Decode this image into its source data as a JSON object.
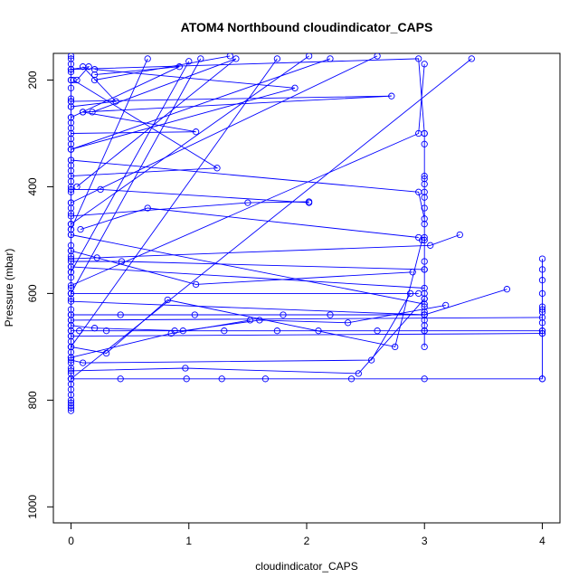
{
  "chart_data": {
    "type": "line",
    "title": "ATOM4 Northbound cloudindicator_CAPS",
    "xlabel": "cloudindicator_CAPS",
    "ylabel": "Pressure (mbar)",
    "xlim": [
      -0.15,
      4.15
    ],
    "ylim": [
      1030,
      150
    ],
    "x_ticks": [
      0,
      1,
      2,
      3,
      4
    ],
    "y_ticks": [
      200,
      400,
      600,
      800,
      1000
    ],
    "series_color": "#0000ff",
    "grid": false,
    "legend": "none",
    "series": [
      {
        "x": [
          0,
          0,
          0,
          0,
          0,
          0,
          0,
          0,
          0,
          0,
          0,
          0,
          0,
          0,
          0,
          0,
          0,
          0,
          0,
          0,
          0,
          0,
          0,
          0,
          0,
          0,
          0,
          0,
          0,
          0,
          0,
          0,
          0,
          0,
          0,
          0,
          0,
          0,
          0,
          0,
          0,
          0,
          0,
          0,
          0,
          0,
          0,
          0,
          0,
          0,
          0,
          0,
          0,
          0,
          0,
          0,
          0,
          0,
          0,
          0
        ],
        "y": [
          155,
          170,
          185,
          200,
          215,
          235,
          250,
          270,
          290,
          310,
          330,
          350,
          370,
          390,
          410,
          430,
          450,
          470,
          490,
          510,
          530,
          550,
          570,
          590,
          610,
          630,
          640,
          650,
          660,
          670,
          680,
          690,
          700,
          710,
          720,
          730,
          740,
          750,
          760,
          770,
          780,
          790,
          800,
          805,
          810,
          815,
          820,
          640,
          600,
          560,
          520,
          480,
          440,
          400,
          360,
          320,
          280,
          240,
          200,
          160
        ]
      },
      {
        "x": [
          3,
          3,
          3,
          3,
          3,
          3,
          3,
          3,
          3,
          3,
          3,
          3,
          3,
          3,
          3,
          3,
          3,
          3,
          3,
          3,
          3,
          3
        ],
        "y": [
          300,
          320,
          380,
          395,
          410,
          420,
          440,
          470,
          495,
          540,
          555,
          600,
          610,
          625,
          635,
          640,
          650,
          660,
          670,
          700,
          500,
          385
        ]
      },
      {
        "x": [
          4,
          4,
          4,
          4,
          4,
          4,
          4,
          4,
          4,
          4,
          4
        ],
        "y": [
          535,
          555,
          575,
          600,
          625,
          635,
          655,
          670,
          675,
          760,
          630
        ]
      },
      {
        "x": [
          0,
          0.42,
          0.98,
          1.28,
          1.65,
          2.38,
          3.0,
          4.0
        ],
        "y": [
          760,
          760,
          760,
          760,
          760,
          760,
          760,
          760
        ]
      },
      {
        "x": [
          0,
          0.07,
          0.3,
          0.88,
          1.3,
          1.75,
          2.1,
          2.6,
          3.0,
          4.0
        ],
        "y": [
          670,
          670,
          670,
          670,
          670,
          670,
          670,
          670,
          670,
          670
        ]
      },
      {
        "x": [
          0,
          0.42,
          1.05,
          1.8,
          2.2,
          3.0,
          3.7
        ],
        "y": [
          640,
          640,
          640,
          640,
          640,
          640,
          592
        ]
      },
      {
        "x": [
          0,
          0.2,
          0.95,
          1.6,
          2.35,
          3.18
        ],
        "y": [
          660,
          665,
          670,
          650,
          655,
          622
        ]
      },
      {
        "x": [
          0,
          0.3,
          0.82,
          2.75,
          2.98
        ],
        "y": [
          700,
          712,
          612,
          700,
          500
        ]
      },
      {
        "x": [
          0,
          0.85,
          1.52
        ],
        "y": [
          720,
          675,
          650
        ]
      },
      {
        "x": [
          0,
          0.1,
          2.55,
          2.88
        ],
        "y": [
          725,
          730,
          725,
          600
        ]
      },
      {
        "x": [
          0,
          0.97,
          2.44,
          3.0
        ],
        "y": [
          745,
          740,
          750,
          610
        ]
      },
      {
        "x": [
          0,
          0.25,
          2.02
        ],
        "y": [
          405,
          405,
          430
        ]
      },
      {
        "x": [
          0,
          0.43,
          3.0
        ],
        "y": [
          540,
          540,
          555
        ]
      },
      {
        "x": [
          0,
          0.22,
          3.05,
          3.3
        ],
        "y": [
          535,
          533,
          510,
          490
        ]
      },
      {
        "x": [
          0,
          1.06,
          2.9
        ],
        "y": [
          520,
          583,
          560
        ]
      },
      {
        "x": [
          0,
          1.24,
          0.02
        ],
        "y": [
          380,
          365,
          200
        ]
      },
      {
        "x": [
          0,
          1.06,
          0.1
        ],
        "y": [
          300,
          297,
          260
        ]
      },
      {
        "x": [
          0,
          0.92,
          0.2
        ],
        "y": [
          270,
          175,
          190
        ]
      },
      {
        "x": [
          0,
          1.9,
          0.2
        ],
        "y": [
          330,
          215,
          180
        ]
      },
      {
        "x": [
          0,
          2.72,
          0.1
        ],
        "y": [
          240,
          230,
          260
        ]
      },
      {
        "x": [
          0,
          2.95,
          3.0
        ],
        "y": [
          180,
          160,
          300
        ]
      },
      {
        "x": [
          0,
          0.38,
          0.1
        ],
        "y": [
          250,
          240,
          175
        ]
      },
      {
        "x": [
          0,
          0.15,
          0.05
        ],
        "y": [
          180,
          175,
          200
        ]
      },
      {
        "x": [
          0.08,
          0.65,
          2.95
        ],
        "y": [
          480,
          440,
          495
        ]
      },
      {
        "x": [
          0,
          1.5,
          2.02
        ],
        "y": [
          455,
          430,
          428
        ]
      },
      {
        "x": [
          0,
          2.95,
          3.0
        ],
        "y": [
          350,
          410,
          460
        ]
      },
      {
        "x": [
          0,
          2.95,
          3.0
        ],
        "y": [
          585,
          300,
          170
        ]
      },
      {
        "x": [
          0.05,
          1.4,
          0.18
        ],
        "y": [
          400,
          160,
          260
        ]
      },
      {
        "x": [
          0,
          3.0
        ],
        "y": [
          490,
          620
        ]
      },
      {
        "x": [
          0,
          3.0
        ],
        "y": [
          550,
          590
        ]
      },
      {
        "x": [
          0,
          4.0
        ],
        "y": [
          650,
          645
        ]
      },
      {
        "x": [
          0,
          4.0
        ],
        "y": [
          680,
          675
        ]
      },
      {
        "x": [
          0,
          3.0
        ],
        "y": [
          615,
          640
        ]
      },
      {
        "x": [
          0,
          2.95
        ],
        "y": [
          600,
          600
        ]
      },
      {
        "x": [
          0,
          2.02
        ],
        "y": [
          470,
          155
        ]
      },
      {
        "x": [
          0,
          2.6
        ],
        "y": [
          430,
          155
        ]
      },
      {
        "x": [
          0,
          1.75
        ],
        "y": [
          700,
          160
        ]
      },
      {
        "x": [
          0,
          1.0
        ],
        "y": [
          560,
          165
        ]
      },
      {
        "x": [
          0,
          0.65
        ],
        "y": [
          480,
          160
        ]
      },
      {
        "x": [
          0,
          2.2
        ],
        "y": [
          330,
          160
        ]
      },
      {
        "x": [
          0,
          1.1
        ],
        "y": [
          600,
          160
        ]
      },
      {
        "x": [
          0.2,
          1.35
        ],
        "y": [
          200,
          155
        ]
      },
      {
        "x": [
          0,
          3.4
        ],
        "y": [
          760,
          160
        ]
      }
    ]
  }
}
